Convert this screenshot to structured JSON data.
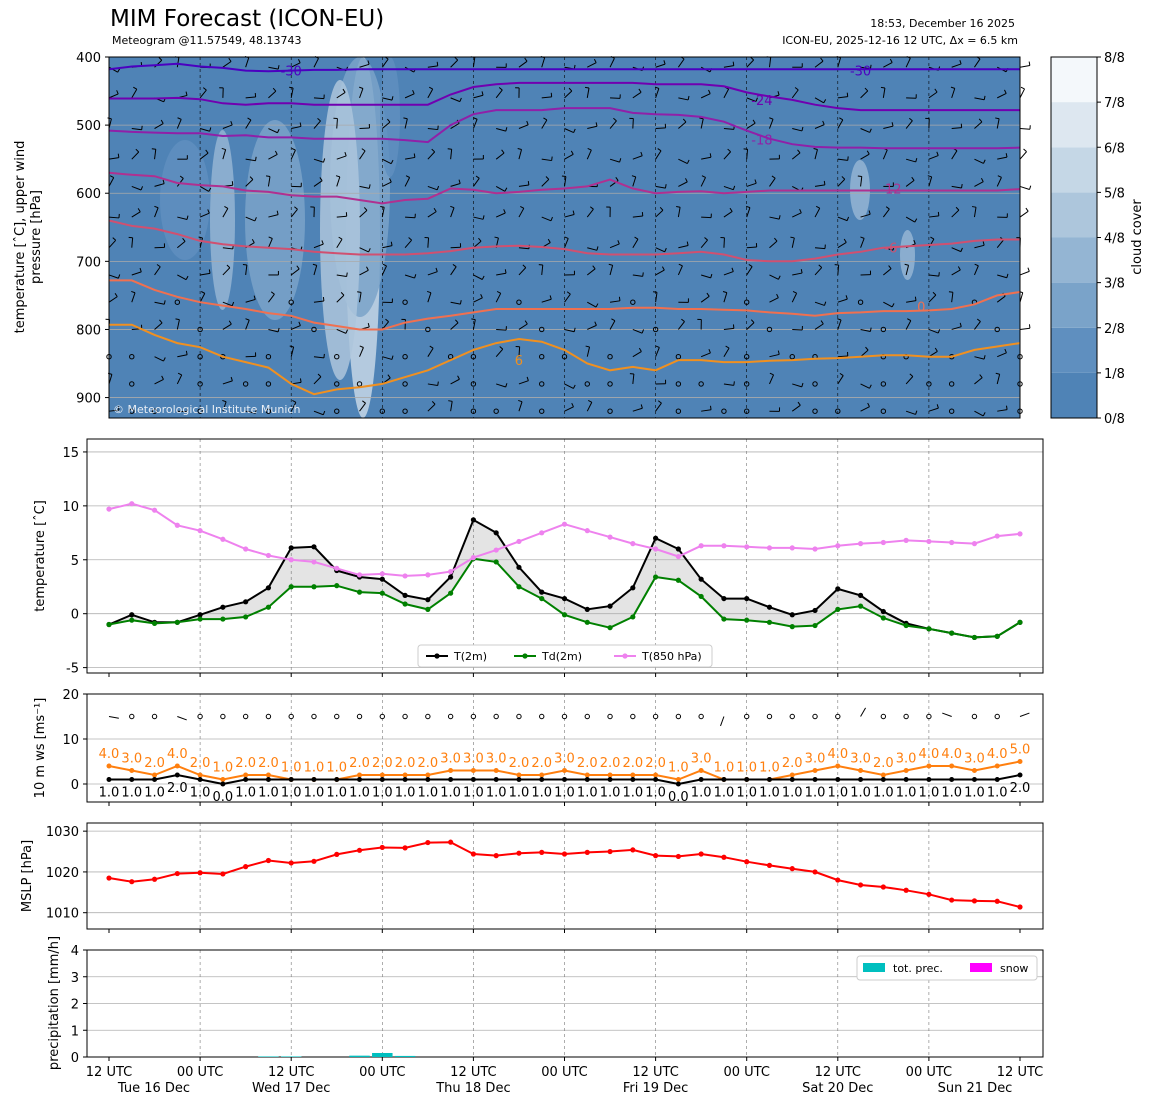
{
  "header": {
    "title": "MIM Forecast (ICON-EU)",
    "subtitle": "Meteogram @11.57549, 48.13743",
    "run_time": "18:53, December 16 2025",
    "model_info": "ICON-EU, 2025-12-16 12 UTC, Δx = 6.5 km"
  },
  "colors": {
    "cloud_scale": [
      "#4f83b6",
      "#5f8fbf",
      "#7aa3c9",
      "#94b5d3",
      "#adc6dc",
      "#c5d7e6",
      "#dde7f0",
      "#f4f8fb"
    ],
    "t2m": "#000000",
    "td2m": "#008000",
    "t850": "#ee82ee",
    "wind_gust": "#ff7f0e",
    "mslp": "#ff0000",
    "precip": "#00bfbf",
    "snow": "#ff00ff",
    "isotherms": {
      "-30": "#4b00c0",
      "-24": "#7000b0",
      "-18": "#9020a8",
      "-12": "#b03090",
      "-6": "#d05070",
      "0": "#f07050",
      "6": "#f09020"
    }
  },
  "x_axis": {
    "ticks": [
      {
        "h": 0,
        "time": "12 UTC",
        "date": "Tue 16 Dec"
      },
      {
        "h": 12,
        "time": "00 UTC",
        "date": ""
      },
      {
        "h": 24,
        "time": "12 UTC",
        "date": "Wed 17 Dec"
      },
      {
        "h": 36,
        "time": "00 UTC",
        "date": ""
      },
      {
        "h": 48,
        "time": "12 UTC",
        "date": "Thu 18 Dec"
      },
      {
        "h": 60,
        "time": "00 UTC",
        "date": ""
      },
      {
        "h": 72,
        "time": "12 UTC",
        "date": "Fri 19 Dec"
      },
      {
        "h": 84,
        "time": "00 UTC",
        "date": ""
      },
      {
        "h": 96,
        "time": "12 UTC",
        "date": "Sat 20 Dec"
      },
      {
        "h": 108,
        "time": "00 UTC",
        "date": ""
      },
      {
        "h": 120,
        "time": "12 UTC",
        "date": "Sun 21 Dec"
      }
    ],
    "step_hours": 3,
    "range": [
      0,
      120
    ]
  },
  "chart_data": [
    {
      "type": "heatmap",
      "name": "upper-air",
      "ylabel": "temperature [$^\\circ$C], upper wind\npressure [hPa]",
      "ylabel_lines": [
        "temperature [ˆC], upper wind",
        "pressure [hPa]"
      ],
      "yticks": [
        400,
        500,
        600,
        700,
        800,
        900
      ],
      "ylim": [
        400,
        930
      ],
      "y_inverted": true,
      "copyright": "© Meteorological Institute Munich",
      "colorbar": {
        "label": "cloud cover",
        "ticks": [
          "0/8",
          "1/8",
          "2/8",
          "3/8",
          "4/8",
          "5/8",
          "6/8",
          "7/8",
          "8/8"
        ]
      },
      "isotherms": [
        {
          "label": "-30",
          "label_at": [
            [
              24,
              420
            ],
            [
              99,
              420
            ]
          ],
          "p": [
            418,
            414,
            412,
            410,
            414,
            416,
            420,
            421,
            420,
            419,
            419,
            418,
            418,
            418,
            418,
            418,
            418,
            418,
            418,
            418,
            418,
            418,
            418,
            418,
            418,
            418,
            418,
            418,
            418,
            418,
            418,
            418,
            418,
            418,
            418,
            418,
            418,
            418,
            418,
            418,
            418
          ]
        },
        {
          "label": "-24",
          "label_at": [
            [
              86,
              463
            ]
          ],
          "p": [
            461,
            461,
            461,
            460,
            462,
            468,
            470,
            468,
            468,
            470,
            470,
            470,
            470,
            470,
            470,
            455,
            444,
            440,
            438,
            438,
            438,
            438,
            438,
            438,
            440,
            440,
            440,
            443,
            452,
            458,
            463,
            470,
            475,
            478,
            478,
            478,
            478,
            478,
            478,
            478,
            478
          ]
        },
        {
          "label": "-18",
          "label_at": [
            [
              86,
              521
            ]
          ],
          "p": [
            508,
            510,
            511,
            512,
            512,
            516,
            515,
            518,
            518,
            520,
            520,
            520,
            520,
            522,
            525,
            500,
            484,
            478,
            478,
            478,
            475,
            475,
            475,
            482,
            484,
            485,
            488,
            495,
            508,
            520,
            528,
            532,
            533,
            533,
            534,
            534,
            534,
            534,
            534,
            534,
            533
          ]
        },
        {
          "label": "-12",
          "label_at": [
            [
              103,
              593
            ]
          ],
          "p": [
            570,
            573,
            575,
            585,
            588,
            590,
            596,
            598,
            603,
            605,
            605,
            610,
            615,
            610,
            608,
            593,
            595,
            600,
            598,
            595,
            593,
            590,
            580,
            593,
            600,
            598,
            597,
            600,
            598,
            596,
            596,
            596,
            596,
            596,
            596,
            596,
            596,
            596,
            596,
            596,
            594
          ]
        },
        {
          "label": "-6",
          "label_at": [
            [
              103,
              680
            ]
          ],
          "p": [
            640,
            648,
            652,
            660,
            670,
            675,
            678,
            680,
            682,
            686,
            688,
            690,
            690,
            690,
            688,
            685,
            680,
            678,
            677,
            679,
            682,
            688,
            690,
            690,
            690,
            688,
            686,
            690,
            698,
            700,
            700,
            696,
            690,
            686,
            680,
            678,
            676,
            674,
            670,
            668,
            668
          ]
        },
        {
          "label": "0",
          "label_at": [
            [
              107,
              766
            ]
          ],
          "p": [
            728,
            728,
            742,
            752,
            760,
            765,
            770,
            776,
            780,
            790,
            795,
            800,
            800,
            790,
            784,
            780,
            775,
            770,
            770,
            770,
            770,
            770,
            770,
            768,
            768,
            770,
            770,
            771,
            772,
            775,
            777,
            780,
            776,
            775,
            773,
            773,
            772,
            770,
            763,
            750,
            745
          ]
        },
        {
          "label": "6",
          "label_at": [
            [
              54,
              845
            ]
          ],
          "p": [
            793,
            793,
            808,
            820,
            826,
            840,
            848,
            856,
            880,
            895,
            888,
            885,
            880,
            870,
            860,
            845,
            830,
            820,
            814,
            818,
            830,
            850,
            860,
            855,
            860,
            845,
            845,
            848,
            848,
            846,
            845,
            843,
            842,
            840,
            838,
            838,
            840,
            840,
            830,
            825,
            820
          ]
        }
      ]
    },
    {
      "type": "line",
      "name": "surface-temperature",
      "ylabel": "temperature [ˆC]",
      "yticks": [
        -5,
        0,
        5,
        10,
        15
      ],
      "ylim": [
        -5.5,
        16.2
      ],
      "legend_placement": "bottom-center",
      "series": [
        {
          "name": "T(2m)",
          "values": [
            -1.0,
            -0.1,
            -0.8,
            -0.8,
            -0.1,
            0.6,
            1.1,
            2.4,
            6.1,
            6.2,
            4.0,
            3.4,
            3.2,
            1.7,
            1.3,
            3.4,
            8.7,
            7.5,
            4.3,
            2.0,
            1.4,
            0.4,
            0.7,
            2.4,
            7.0,
            6.0,
            3.2,
            1.4,
            1.4,
            0.6,
            -0.1,
            0.3,
            2.3,
            1.7,
            0.2,
            -0.9,
            -1.4,
            -1.8,
            -2.2,
            -2.1,
            -0.8
          ]
        },
        {
          "name": "Td(2m)",
          "values": [
            -1.0,
            -0.6,
            -0.9,
            -0.8,
            -0.5,
            -0.5,
            -0.3,
            0.6,
            2.5,
            2.5,
            2.6,
            2.0,
            1.9,
            0.9,
            0.4,
            1.9,
            5.1,
            4.8,
            2.5,
            1.4,
            -0.1,
            -0.8,
            -1.3,
            -0.3,
            3.4,
            3.1,
            1.6,
            -0.5,
            -0.6,
            -0.8,
            -1.2,
            -1.1,
            0.4,
            0.7,
            -0.4,
            -1.1,
            -1.4,
            -1.8,
            -2.2,
            -2.1,
            -0.8
          ]
        },
        {
          "name": "T(850 hPa)",
          "values": [
            9.7,
            10.2,
            9.6,
            8.2,
            7.7,
            6.9,
            6.0,
            5.4,
            5.0,
            4.8,
            4.2,
            3.6,
            3.7,
            3.5,
            3.6,
            3.9,
            5.2,
            5.9,
            6.7,
            7.5,
            8.3,
            7.7,
            7.1,
            6.5,
            6.0,
            5.3,
            6.3,
            6.3,
            6.2,
            6.1,
            6.1,
            6.0,
            6.3,
            6.5,
            6.6,
            6.8,
            6.7,
            6.6,
            6.5,
            7.2,
            7.4
          ]
        }
      ]
    },
    {
      "type": "line",
      "name": "wind-10m",
      "ylabel": "10 m ws [ms⁻¹]",
      "yticks": [
        0,
        10,
        20
      ],
      "ylim": [
        -4,
        20
      ],
      "series": [
        {
          "name": "",
          "values": [
            1.0,
            1.0,
            1.0,
            2.0,
            1.0,
            0.0,
            1.0,
            1.0,
            1.0,
            1.0,
            1.0,
            1.0,
            1.0,
            1.0,
            1.0,
            1.0,
            1.0,
            1.0,
            1.0,
            1.0,
            1.0,
            1.0,
            1.0,
            1.0,
            1.0,
            0.0,
            1.0,
            1.0,
            1.0,
            1.0,
            1.0,
            1.0,
            1.0,
            1.0,
            1.0,
            1.0,
            1.0,
            1.0,
            1.0,
            1.0,
            2.0
          ]
        },
        {
          "name": "",
          "values": [
            4.0,
            3.0,
            2.0,
            4.0,
            2.0,
            1.0,
            2.0,
            2.0,
            1.0,
            1.0,
            1.0,
            2.0,
            2.0,
            2.0,
            2.0,
            3.0,
            3.0,
            3.0,
            2.0,
            2.0,
            3.0,
            2.0,
            2.0,
            2.0,
            2.0,
            1.0,
            3.0,
            1.0,
            1.0,
            1.0,
            2.0,
            3.0,
            4.0,
            3.0,
            2.0,
            3.0,
            4.0,
            4.0,
            3.0,
            4.0,
            5.0
          ]
        }
      ],
      "wind_barbs_row": 15
    },
    {
      "type": "line",
      "name": "mslp",
      "ylabel": "MSLP [hPa]",
      "yticks": [
        1010,
        1020,
        1030
      ],
      "ylim": [
        1006,
        1032
      ],
      "series": [
        {
          "name": "",
          "values": [
            1018.5,
            1017.6,
            1018.2,
            1019.6,
            1019.8,
            1019.5,
            1021.3,
            1022.8,
            1022.2,
            1022.6,
            1024.3,
            1025.3,
            1026.0,
            1025.9,
            1027.2,
            1027.3,
            1024.4,
            1024.0,
            1024.6,
            1024.8,
            1024.4,
            1024.8,
            1025.0,
            1025.4,
            1024.0,
            1023.8,
            1024.4,
            1023.6,
            1022.5,
            1021.6,
            1020.8,
            1020.0,
            1018.0,
            1016.8,
            1016.3,
            1015.5,
            1014.5,
            1013.1,
            1012.9,
            1012.8,
            1011.4
          ]
        }
      ]
    },
    {
      "type": "bar",
      "name": "precipitation",
      "ylabel": "precipitation [mm/h]",
      "yticks": [
        0,
        1,
        2,
        3,
        4
      ],
      "ylim": [
        0,
        4
      ],
      "legend_placement": "top-right",
      "series": [
        {
          "name": "tot. prec.",
          "values": [
            0,
            0,
            0,
            0,
            0,
            0,
            0,
            0.02,
            0.02,
            0,
            0,
            0.05,
            0.15,
            0.04,
            0,
            0,
            0,
            0,
            0,
            0,
            0,
            0,
            0,
            0,
            0,
            0,
            0,
            0,
            0,
            0,
            0,
            0,
            0,
            0,
            0,
            0,
            0,
            0,
            0,
            0,
            0
          ]
        },
        {
          "name": "snow",
          "values": [
            0,
            0,
            0,
            0,
            0,
            0,
            0,
            0,
            0,
            0,
            0,
            0,
            0,
            0,
            0,
            0,
            0,
            0,
            0,
            0,
            0,
            0,
            0,
            0,
            0,
            0,
            0,
            0,
            0,
            0,
            0,
            0,
            0,
            0,
            0,
            0,
            0,
            0,
            0,
            0,
            0
          ]
        }
      ]
    }
  ]
}
